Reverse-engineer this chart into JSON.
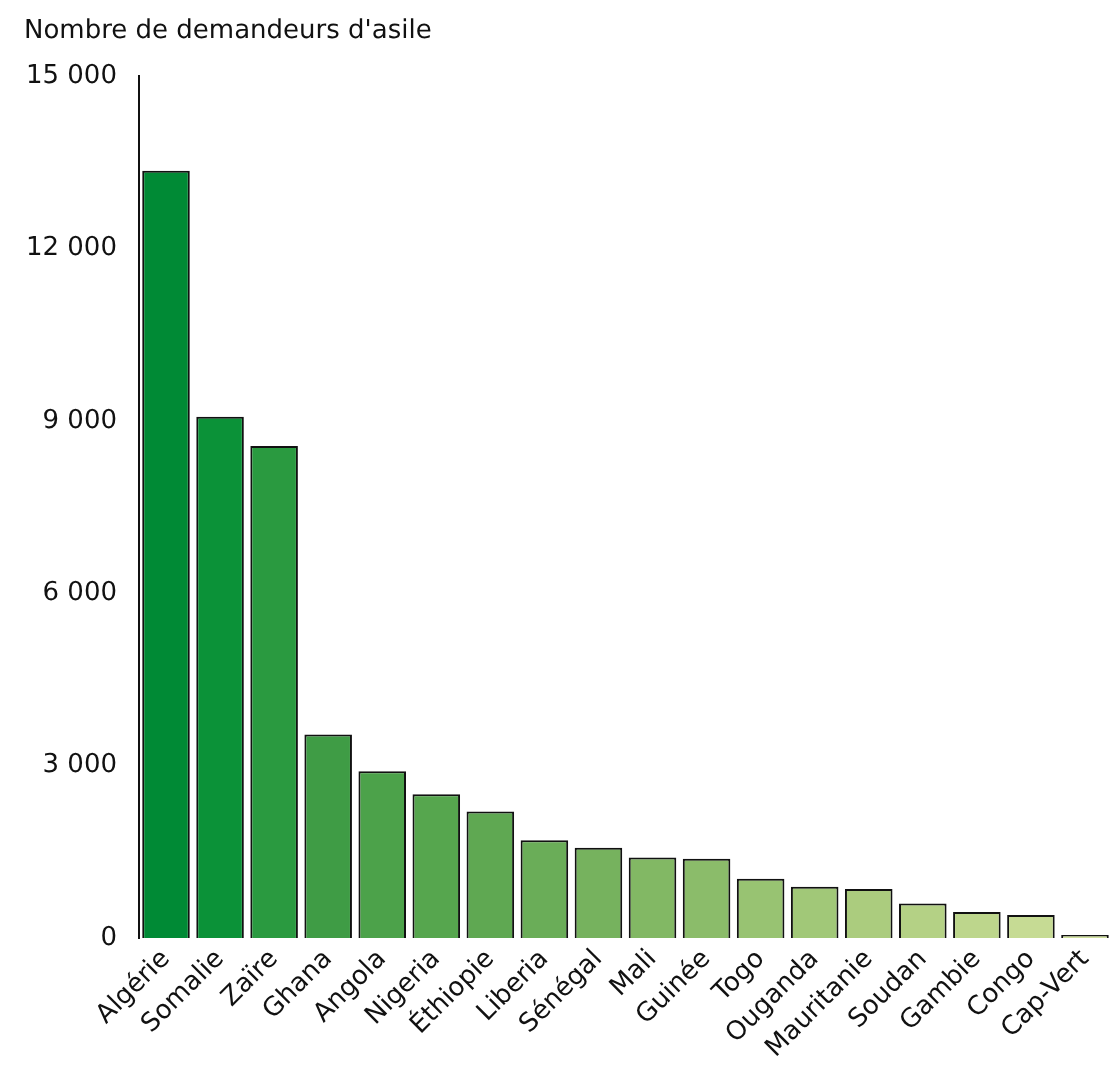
{
  "chart_data": {
    "type": "bar",
    "ylabel": "Nombre de demandeurs d'asile",
    "categories": [
      "Algérie",
      "Somalie",
      "Zaïre",
      "Ghana",
      "Angola",
      "Nigeria",
      "Éthiopie",
      "Liberia",
      "Sénégal",
      "Mali",
      "Guinée",
      "Togo",
      "Ouganda",
      "Mauritanie",
      "Soudan",
      "Gambie",
      "Congo",
      "Cap-Vert"
    ],
    "values": [
      13350,
      9070,
      8560,
      3540,
      2900,
      2500,
      2200,
      1700,
      1570,
      1400,
      1380,
      1030,
      890,
      850,
      600,
      450,
      400,
      50
    ],
    "colors": [
      "#008a35",
      "#0b9238",
      "#2a9a40",
      "#3f9c45",
      "#4ca24a",
      "#56a64e",
      "#5fa852",
      "#6aad58",
      "#76b25e",
      "#82b864",
      "#8bbc6a",
      "#98c372",
      "#a1c878",
      "#abcc7e",
      "#b4d185",
      "#bdd68c",
      "#c6db94",
      "#cfe09c"
    ],
    "ylim": [
      0,
      15000
    ],
    "yticks": [
      {
        "value": 0,
        "label": "0"
      },
      {
        "value": 3000,
        "label": "3 000"
      },
      {
        "value": 6000,
        "label": "6 000"
      },
      {
        "value": 9000,
        "label": "9 000"
      },
      {
        "value": 12000,
        "label": "12 000"
      },
      {
        "value": 15000,
        "label": "15 000"
      }
    ],
    "grid": false,
    "legend": false
  }
}
